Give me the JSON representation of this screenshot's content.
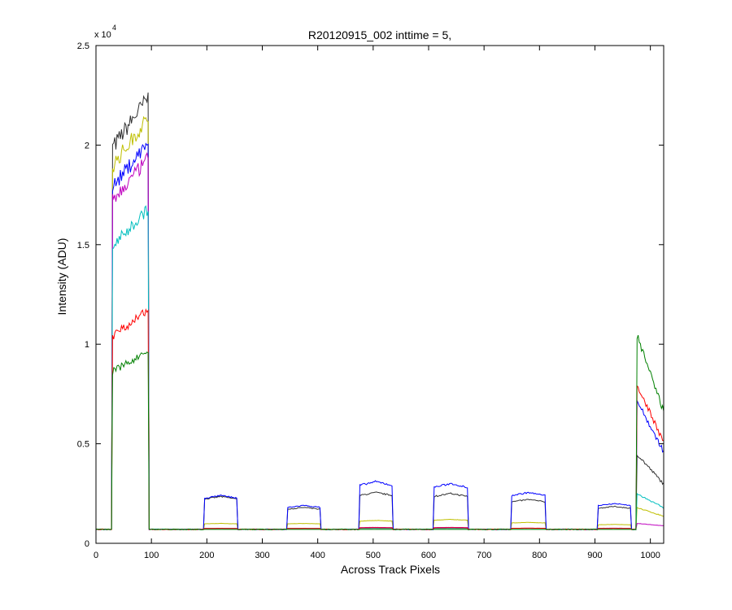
{
  "chart_data": {
    "type": "line",
    "title": "R20120915_002 inttime = 5,",
    "xlabel": "Across Track Pixels",
    "ylabel": "Intensity (ADU)",
    "exponent_label": "x 10",
    "exponent_power": "4",
    "xlim": [
      0,
      1024
    ],
    "ylim": [
      0,
      25000
    ],
    "xticks": [
      0,
      100,
      200,
      300,
      400,
      500,
      600,
      700,
      800,
      900,
      1000
    ],
    "yticks": [
      0,
      5000,
      10000,
      15000,
      20000,
      25000
    ],
    "ytick_labels": [
      "0",
      "0.5",
      "1",
      "1.5",
      "2",
      "2.5"
    ],
    "grid": false,
    "legend": "none",
    "baseline": 700,
    "series": [
      {
        "color": "#303030",
        "levels": [
          22000,
          2350,
          1800,
          2550,
          2500,
          2200,
          1850,
          4500
        ]
      },
      {
        "color": "#bfbf00",
        "levels": [
          21000,
          1000,
          1000,
          1150,
          1200,
          1050,
          950,
          1800
        ]
      },
      {
        "color": "#0000ff",
        "levels": [
          19800,
          2400,
          1900,
          3100,
          3000,
          2550,
          2000,
          7200
        ]
      },
      {
        "color": "#bf00bf",
        "levels": [
          19000,
          750,
          750,
          800,
          800,
          760,
          760,
          1000
        ]
      },
      {
        "color": "#00bfbf",
        "levels": [
          16500,
          750,
          750,
          750,
          750,
          750,
          750,
          2500
        ]
      },
      {
        "color": "#ff0000",
        "levels": [
          11500,
          750,
          750,
          780,
          780,
          760,
          750,
          8000
        ]
      },
      {
        "color": "#008000",
        "levels": [
          9500,
          700,
          700,
          700,
          700,
          700,
          700,
          10500
        ]
      }
    ],
    "segments_x": [
      [
        30,
        95
      ],
      [
        195,
        255
      ],
      [
        345,
        405
      ],
      [
        475,
        535
      ],
      [
        610,
        670
      ],
      [
        750,
        810
      ],
      [
        905,
        965
      ],
      [
        975,
        1024
      ]
    ]
  }
}
